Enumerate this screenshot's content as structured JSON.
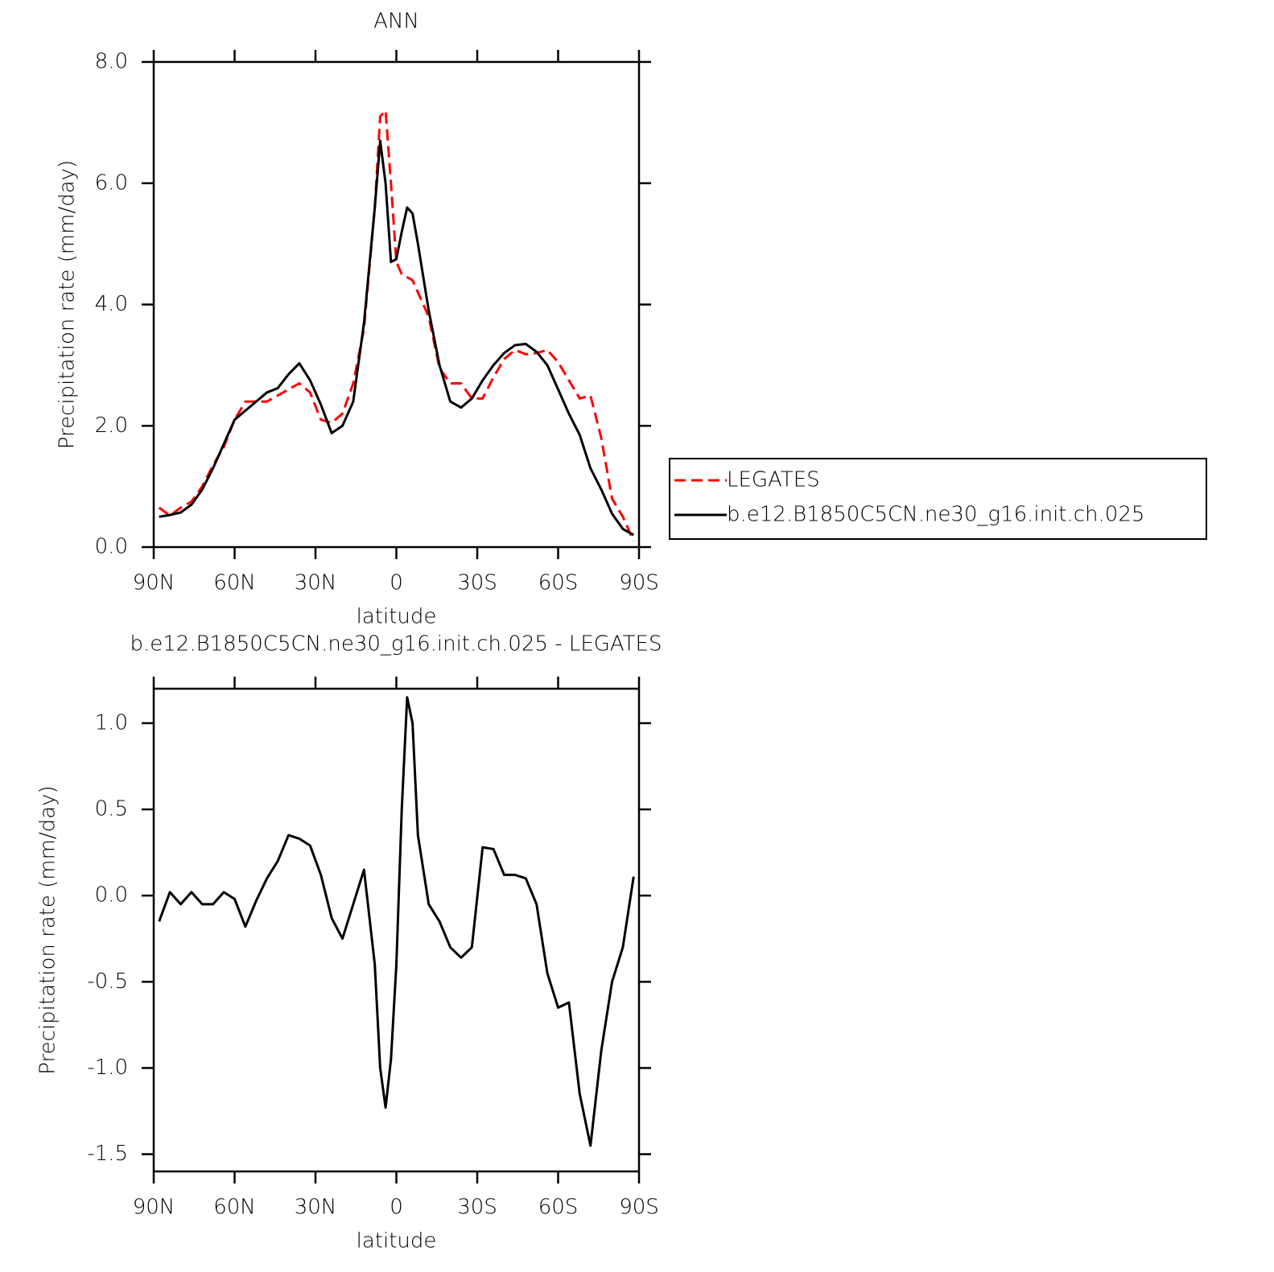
{
  "chart_data": [
    {
      "type": "line",
      "title": "ANN",
      "xlabel": "latitude",
      "ylabel": "Precipitation rate (mm/day)",
      "x": [
        88,
        84,
        80,
        76,
        72,
        68,
        64,
        60,
        56,
        52,
        48,
        44,
        40,
        36,
        32,
        28,
        24,
        20,
        16,
        12,
        8,
        6,
        4,
        2,
        0,
        -2,
        -4,
        -6,
        -8,
        -12,
        -16,
        -20,
        -24,
        -28,
        -32,
        -36,
        -40,
        -44,
        -48,
        -52,
        -56,
        -60,
        -64,
        -68,
        -72,
        -76,
        -80,
        -84,
        -88
      ],
      "series": [
        {
          "name": "LEGATES",
          "color": "#ff0000",
          "dashed": true,
          "values": [
            0.65,
            0.52,
            0.65,
            0.75,
            1.0,
            1.35,
            1.65,
            2.1,
            2.4,
            2.4,
            2.4,
            2.5,
            2.6,
            2.7,
            2.55,
            2.1,
            2.05,
            2.2,
            2.7,
            3.6,
            5.6,
            7.1,
            7.2,
            6.0,
            4.7,
            4.5,
            4.45,
            4.4,
            4.2,
            3.8,
            2.95,
            2.7,
            2.7,
            2.45,
            2.45,
            2.8,
            3.1,
            3.25,
            3.18,
            3.2,
            3.25,
            3.05,
            2.75,
            2.45,
            2.5,
            1.8,
            0.8,
            0.5,
            0.1
          ]
        },
        {
          "name": "b.e12.B1850C5CN.ne30_g16.init.ch.025",
          "color": "#000000",
          "dashed": false,
          "values": [
            0.5,
            0.53,
            0.57,
            0.7,
            0.95,
            1.3,
            1.7,
            2.1,
            2.25,
            2.4,
            2.55,
            2.62,
            2.85,
            3.03,
            2.75,
            2.35,
            1.88,
            2.0,
            2.4,
            3.7,
            5.6,
            6.7,
            6.0,
            4.7,
            4.75,
            5.2,
            5.6,
            5.5,
            5.0,
            3.9,
            3.0,
            2.4,
            2.3,
            2.45,
            2.75,
            3.0,
            3.2,
            3.33,
            3.35,
            3.22,
            3.0,
            2.6,
            2.2,
            1.85,
            1.3,
            0.95,
            0.55,
            0.3,
            0.2
          ]
        }
      ],
      "xlim": [
        90,
        -90
      ],
      "xticks": [
        {
          "value": 90,
          "label": "90N"
        },
        {
          "value": 60,
          "label": "60N"
        },
        {
          "value": 30,
          "label": "30N"
        },
        0,
        {
          "value": -30,
          "label": "30S"
        },
        {
          "value": -60,
          "label": "60S"
        },
        {
          "value": -90,
          "label": "90S"
        }
      ],
      "ylim": [
        0,
        8
      ],
      "yticks": [
        {
          "value": 0,
          "label": "0.0"
        },
        {
          "value": 2,
          "label": "2.0"
        },
        {
          "value": 4,
          "label": "4.0"
        },
        {
          "value": 6,
          "label": "6.0"
        },
        {
          "value": 8,
          "label": "8.0"
        }
      ],
      "legend": "right"
    },
    {
      "type": "line",
      "title": "b.e12.B1850C5CN.ne30_g16.init.ch.025 - LEGATES",
      "xlabel": "latitude",
      "ylabel": "Precipitation rate (mm/day)",
      "x": [
        88,
        84,
        80,
        76,
        72,
        68,
        64,
        60,
        56,
        52,
        48,
        44,
        40,
        36,
        32,
        28,
        24,
        20,
        16,
        12,
        8,
        6,
        4,
        2,
        0,
        -2,
        -4,
        -6,
        -8,
        -12,
        -16,
        -20,
        -24,
        -28,
        -32,
        -36,
        -40,
        -44,
        -48,
        -52,
        -56,
        -60,
        -64,
        -68,
        -72,
        -76,
        -80,
        -84,
        -88
      ],
      "series": [
        {
          "color": "#000000",
          "dashed": false,
          "values": [
            -0.15,
            0.02,
            -0.05,
            0.02,
            -0.05,
            -0.05,
            0.02,
            -0.02,
            -0.18,
            -0.03,
            0.1,
            0.2,
            0.35,
            0.33,
            0.29,
            0.12,
            -0.13,
            -0.25,
            -0.05,
            0.15,
            -0.4,
            -1.0,
            -1.23,
            -0.95,
            -0.4,
            0.5,
            1.15,
            1.0,
            0.35,
            -0.05,
            -0.15,
            -0.3,
            -0.36,
            -0.3,
            0.28,
            0.27,
            0.12,
            0.12,
            0.1,
            -0.05,
            -0.45,
            -0.65,
            -0.62,
            -1.15,
            -1.45,
            -0.9,
            -0.5,
            -0.3,
            0.11
          ]
        }
      ],
      "xlim": [
        90,
        -90
      ],
      "xticks": [
        {
          "value": 90,
          "label": "90N"
        },
        {
          "value": 60,
          "label": "60N"
        },
        {
          "value": 30,
          "label": "30N"
        },
        0,
        {
          "value": -30,
          "label": "30S"
        },
        {
          "value": -60,
          "label": "60S"
        },
        {
          "value": -90,
          "label": "90S"
        }
      ],
      "ylim": [
        -1.6,
        1.2
      ],
      "yticks": [
        -1.5,
        {
          "value": -1,
          "label": "-1.0"
        },
        -0.5,
        {
          "value": 0,
          "label": "0.0"
        },
        0.5,
        {
          "value": 1,
          "label": "1.0"
        }
      ]
    }
  ]
}
